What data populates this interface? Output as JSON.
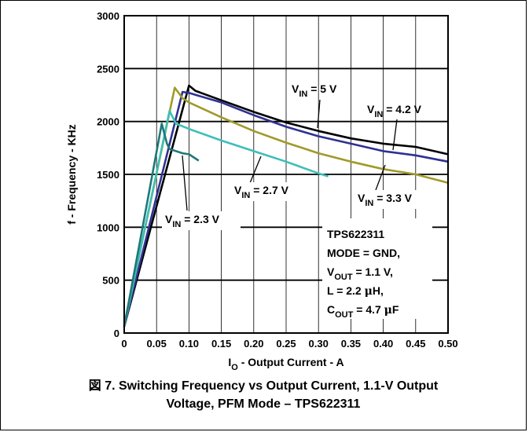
{
  "caption": {
    "line1": "図 7. Switching Frequency vs Output Current, 1.1-V Output",
    "line2": "Voltage, PFM Mode – TPS622311"
  },
  "annotation": {
    "lines": [
      [
        {
          "t": "TPS622311"
        }
      ],
      [
        {
          "t": "MODE = GND,"
        }
      ],
      [
        {
          "t": "V"
        },
        {
          "t": "OUT",
          "sub": true
        },
        {
          "t": " = 1.1 V,"
        }
      ],
      [
        {
          "t": "L = 2.2 "
        },
        {
          "t": "μ",
          "serif": true
        },
        {
          "t": "H,"
        }
      ],
      [
        {
          "t": "C"
        },
        {
          "t": "OUT",
          "sub": true
        },
        {
          "t": " = 4.7 "
        },
        {
          "t": "μ",
          "serif": true
        },
        {
          "t": "F"
        }
      ]
    ]
  },
  "chart_data": {
    "type": "line",
    "xlabel": {
      "main": "I",
      "sub": "O",
      "rest": " - Output Current - A"
    },
    "ylabel": "f - Frequency - KHz",
    "xlim": [
      0,
      0.5
    ],
    "ylim": [
      0,
      3000
    ],
    "xticks": [
      0,
      0.05,
      0.1,
      0.15,
      0.2,
      0.25,
      0.3,
      0.35,
      0.4,
      0.45,
      0.5
    ],
    "xtick_labels": [
      "0",
      "0.05",
      "0.10",
      "0.15",
      "0.20",
      "0.25",
      "0.30",
      "0.35",
      "0.40",
      "0.45",
      "0.50"
    ],
    "yticks": [
      0,
      500,
      1000,
      1500,
      2000,
      2500,
      3000
    ],
    "ytick_labels": [
      "0",
      "500",
      "1000",
      "1500",
      "2000",
      "2500",
      "3000"
    ],
    "grid": true,
    "series": [
      {
        "name": {
          "pre": "V",
          "sub": "IN",
          "post": " = 5 V"
        },
        "color": "#000000",
        "points": [
          [
            0,
            60
          ],
          [
            0.1,
            2340
          ],
          [
            0.11,
            2290
          ],
          [
            0.15,
            2200
          ],
          [
            0.2,
            2090
          ],
          [
            0.25,
            1990
          ],
          [
            0.3,
            1910
          ],
          [
            0.35,
            1840
          ],
          [
            0.4,
            1790
          ],
          [
            0.45,
            1760
          ],
          [
            0.5,
            1690
          ]
        ]
      },
      {
        "name": {
          "pre": "V",
          "sub": "IN",
          "post": " = 4.2 V"
        },
        "color": "#2e3192",
        "points": [
          [
            0,
            60
          ],
          [
            0.09,
            2280
          ],
          [
            0.1,
            2270
          ],
          [
            0.15,
            2180
          ],
          [
            0.2,
            2060
          ],
          [
            0.25,
            1950
          ],
          [
            0.3,
            1860
          ],
          [
            0.35,
            1790
          ],
          [
            0.4,
            1720
          ],
          [
            0.45,
            1680
          ],
          [
            0.5,
            1620
          ]
        ]
      },
      {
        "name": {
          "pre": "V",
          "sub": "IN",
          "post": " = 3.3 V"
        },
        "color": "#a09a2a",
        "points": [
          [
            0,
            60
          ],
          [
            0.078,
            2320
          ],
          [
            0.09,
            2220
          ],
          [
            0.1,
            2180
          ],
          [
            0.15,
            2040
          ],
          [
            0.2,
            1910
          ],
          [
            0.25,
            1800
          ],
          [
            0.3,
            1700
          ],
          [
            0.35,
            1620
          ],
          [
            0.4,
            1550
          ],
          [
            0.45,
            1500
          ],
          [
            0.5,
            1420
          ]
        ]
      },
      {
        "name": {
          "pre": "V",
          "sub": "IN",
          "post": " = 2.7 V"
        },
        "color": "#3dbfb8",
        "points": [
          [
            0,
            60
          ],
          [
            0.07,
            2100
          ],
          [
            0.08,
            1980
          ],
          [
            0.1,
            1930
          ],
          [
            0.15,
            1820
          ],
          [
            0.2,
            1720
          ],
          [
            0.25,
            1620
          ],
          [
            0.3,
            1510
          ],
          [
            0.315,
            1480
          ]
        ]
      },
      {
        "name": {
          "pre": "V",
          "sub": "IN",
          "post": " = 2.3 V"
        },
        "color": "#1e7878",
        "points": [
          [
            0,
            60
          ],
          [
            0.058,
            1980
          ],
          [
            0.066,
            1790
          ],
          [
            0.07,
            1740
          ],
          [
            0.09,
            1700
          ],
          [
            0.1,
            1690
          ],
          [
            0.115,
            1630
          ]
        ]
      }
    ]
  }
}
